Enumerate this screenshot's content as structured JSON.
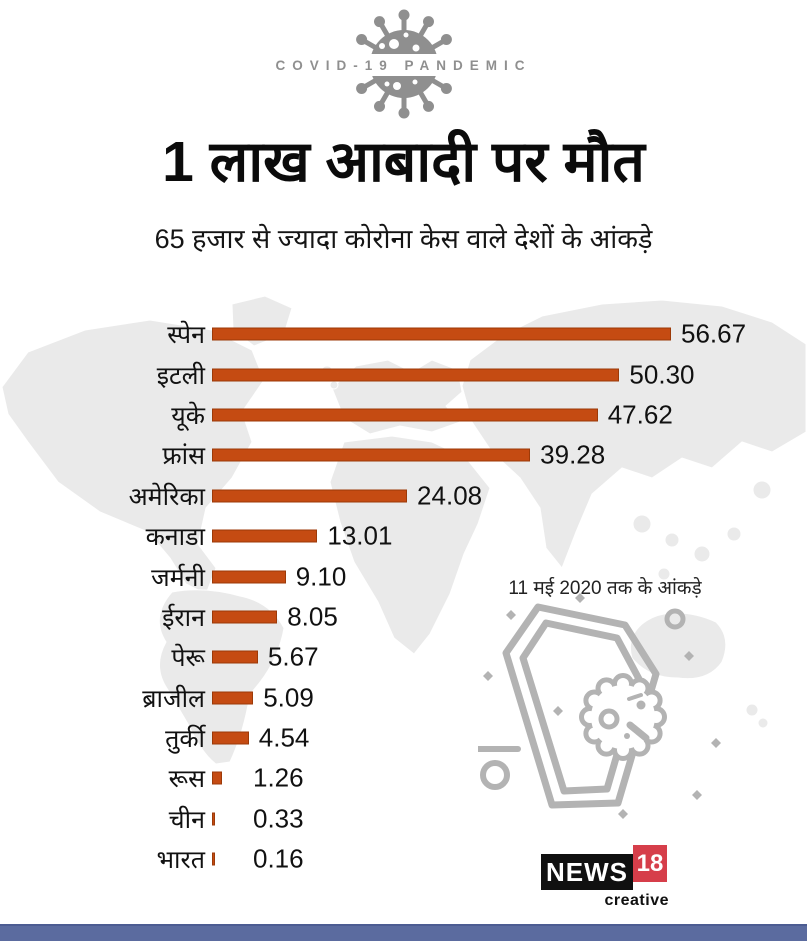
{
  "header": {
    "badge": "COVID-19 PANDEMIC",
    "title": "1 लाख आबादी पर मौत",
    "subtitle": "65 हजार से ज्यादा कोरोना केस वाले देशों के आंकड़े"
  },
  "annotation": {
    "note": "11 मई 2020 तक के आंकड़े"
  },
  "branding": {
    "news": "NEWS",
    "number": "18",
    "creative": "creative"
  },
  "colors": {
    "bar": "#c54b12",
    "bar_border": "#9c3a08",
    "accent_red": "#d63e4a",
    "footer_bar": "#5b6b9f",
    "map_gray": "#eaeaea",
    "icon_gray": "#8f8f8f",
    "outline_gray": "#b3b3b3",
    "text_black": "#111111"
  },
  "chart_data": {
    "type": "bar",
    "orientation": "horizontal",
    "title": "1 लाख आबादी पर मौत",
    "subtitle": "65 हजार से ज्यादा कोरोना केस वाले देशों के आंकड़े",
    "note": "11 मई 2020 तक के आंकड़े",
    "categories": [
      "स्पेन",
      "इटली",
      "यूके",
      "फ्रांस",
      "अमेरिका",
      "कनाडा",
      "जर्मनी",
      "ईरान",
      "पेरू",
      "ब्राजील",
      "तुर्की",
      "रूस",
      "चीन",
      "भारत"
    ],
    "values": [
      56.67,
      50.3,
      47.62,
      39.28,
      24.08,
      13.01,
      9.1,
      8.05,
      5.67,
      5.09,
      4.54,
      1.26,
      0.33,
      0.16
    ],
    "value_labels": [
      "56.67",
      "50.30",
      "47.62",
      "39.28",
      "24.08",
      "13.01",
      "9.10",
      "8.05",
      "5.67",
      "5.09",
      "4.54",
      "1.26",
      "0.33",
      "0.16"
    ],
    "xlim": [
      0,
      60
    ],
    "grid": false,
    "legend": false,
    "bar_color": "#c54b12"
  }
}
